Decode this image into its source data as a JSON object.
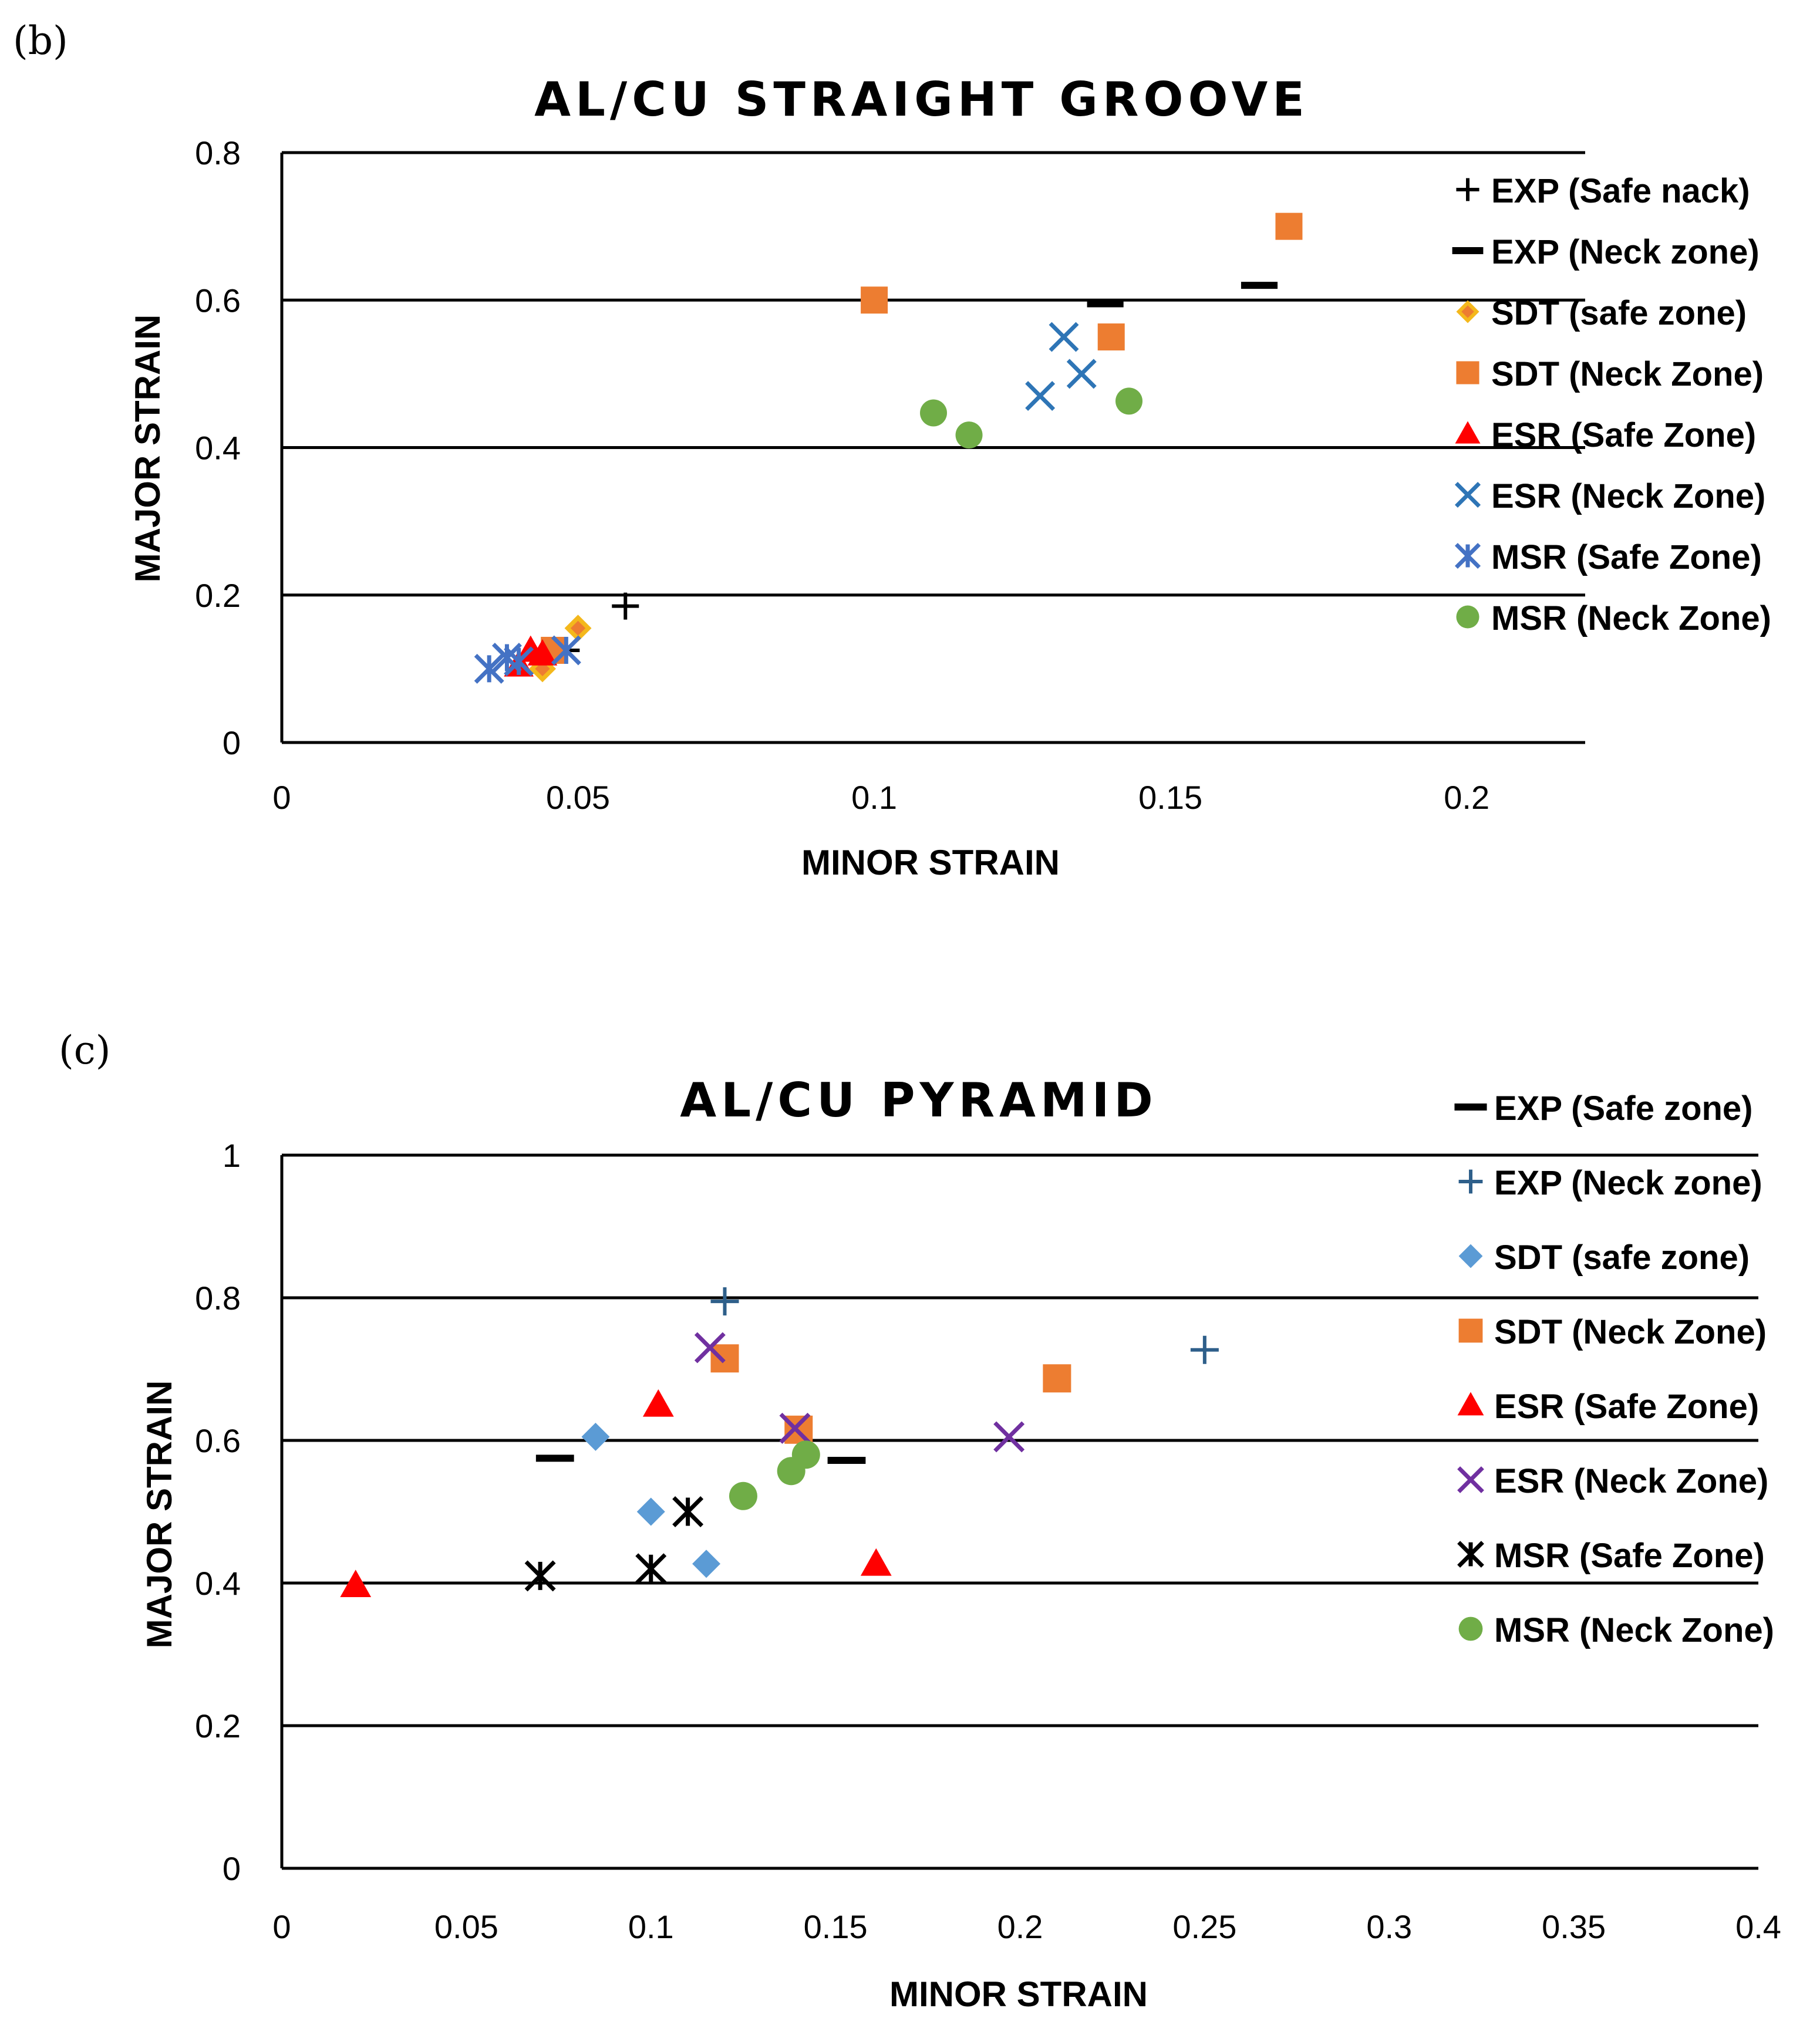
{
  "panels": {
    "b_label": "(b)",
    "c_label": "(c)"
  },
  "chart_data": [
    {
      "type": "scatter",
      "title": "AL/CU  STRAIGHT GROOVE",
      "xlabel": "MINOR STRAIN",
      "ylabel": "MAJOR STRAIN",
      "xlim": [
        0,
        0.22
      ],
      "ylim": [
        0,
        0.8
      ],
      "xticks": [
        0,
        0.05,
        0.1,
        0.15,
        0.2
      ],
      "xtick_labels": [
        "0",
        "0.05",
        "0.1",
        "0.15",
        "0.2"
      ],
      "yticks": [
        0,
        0.2,
        0.4,
        0.6,
        0.8
      ],
      "ytick_labels": [
        "0",
        "0.2",
        "0.4",
        "0.6",
        "0.8"
      ],
      "grid": "horizontal",
      "legend": "right",
      "series": [
        {
          "name": "EXP (Safe nack)",
          "marker": "plus",
          "color": "#000000",
          "points": [
            [
              0.058,
              0.185
            ],
            [
              0.048,
              0.125
            ]
          ]
        },
        {
          "name": "EXP (Neck zone)",
          "marker": "dash",
          "color": "#000000",
          "points": [
            [
              0.139,
              0.595
            ],
            [
              0.165,
              0.62
            ]
          ]
        },
        {
          "name": "SDT (safe zone)",
          "marker": "diamond",
          "color": "#f4b81c",
          "inner": "#ed7d31",
          "points": [
            [
              0.05,
              0.155
            ],
            [
              0.044,
              0.1
            ]
          ]
        },
        {
          "name": "SDT (Neck Zone)",
          "marker": "square",
          "color": "#ed7d31",
          "points": [
            [
              0.1,
              0.6
            ],
            [
              0.14,
              0.55
            ],
            [
              0.17,
              0.7
            ],
            [
              0.046,
              0.125
            ]
          ]
        },
        {
          "name": "ESR (Safe Zone)",
          "marker": "triangle",
          "color": "#ff0000",
          "points": [
            [
              0.04,
              0.105
            ],
            [
              0.042,
              0.125
            ],
            [
              0.044,
              0.12
            ]
          ]
        },
        {
          "name": "ESR (Neck Zone)",
          "marker": "x",
          "color": "#2e75b6",
          "points": [
            [
              0.128,
              0.47
            ],
            [
              0.132,
              0.55
            ],
            [
              0.135,
              0.5
            ]
          ]
        },
        {
          "name": "MSR (Safe Zone)",
          "marker": "star",
          "color": "#4472c4",
          "points": [
            [
              0.035,
              0.1
            ],
            [
              0.038,
              0.115
            ],
            [
              0.048,
              0.125
            ],
            [
              0.04,
              0.11
            ]
          ]
        },
        {
          "name": "MSR (Neck Zone)",
          "marker": "circle",
          "color": "#70ad47",
          "points": [
            [
              0.11,
              0.447
            ],
            [
              0.116,
              0.417
            ],
            [
              0.143,
              0.463
            ]
          ]
        }
      ]
    },
    {
      "type": "scatter",
      "title": "AL/CU  PYRAMID",
      "xlabel": "MINOR STRAIN",
      "ylabel": "MAJOR STRAIN",
      "xlim": [
        0,
        0.4
      ],
      "ylim": [
        0,
        1
      ],
      "xticks": [
        0,
        0.05,
        0.1,
        0.15,
        0.2,
        0.25,
        0.3,
        0.35,
        0.4
      ],
      "xtick_labels": [
        "0",
        "0.05",
        "0.1",
        "0.15",
        "0.2",
        "0.25",
        "0.3",
        "0.35",
        "0.4"
      ],
      "yticks": [
        0,
        0.2,
        0.4,
        0.6,
        0.8,
        1
      ],
      "ytick_labels": [
        "0",
        "0.2",
        "0.4",
        "0.6",
        "0.8",
        "1"
      ],
      "grid": "horizontal",
      "legend": "right",
      "series": [
        {
          "name": "EXP (Safe zone)",
          "marker": "dash",
          "color": "#000000",
          "points": [
            [
              0.074,
              0.575
            ],
            [
              0.153,
              0.572
            ]
          ]
        },
        {
          "name": "EXP (Neck zone)",
          "marker": "plus",
          "color": "#2e5f8a",
          "points": [
            [
              0.12,
              0.795
            ],
            [
              0.25,
              0.727
            ]
          ]
        },
        {
          "name": "SDT (safe zone)",
          "marker": "diamond",
          "color": "#5b9bd5",
          "points": [
            [
              0.085,
              0.605
            ],
            [
              0.1,
              0.5
            ],
            [
              0.115,
              0.427
            ]
          ]
        },
        {
          "name": "SDT (Neck Zone)",
          "marker": "square",
          "color": "#ed7d31",
          "points": [
            [
              0.12,
              0.715
            ],
            [
              0.14,
              0.615
            ],
            [
              0.21,
              0.687
            ]
          ]
        },
        {
          "name": "ESR (Safe Zone)",
          "marker": "triangle",
          "color": "#ff0000",
          "points": [
            [
              0.02,
              0.397
            ],
            [
              0.102,
              0.65
            ],
            [
              0.161,
              0.427
            ]
          ]
        },
        {
          "name": "ESR (Neck Zone)",
          "marker": "x",
          "color": "#7030a0",
          "points": [
            [
              0.116,
              0.73
            ],
            [
              0.139,
              0.617
            ],
            [
              0.197,
              0.605
            ]
          ]
        },
        {
          "name": "MSR (Safe Zone)",
          "marker": "star",
          "color": "#000000",
          "points": [
            [
              0.07,
              0.41
            ],
            [
              0.1,
              0.42
            ],
            [
              0.11,
              0.5
            ]
          ]
        },
        {
          "name": "MSR (Neck Zone)",
          "marker": "circle",
          "color": "#70ad47",
          "points": [
            [
              0.125,
              0.522
            ],
            [
              0.138,
              0.557
            ],
            [
              0.142,
              0.58
            ]
          ]
        }
      ]
    }
  ]
}
